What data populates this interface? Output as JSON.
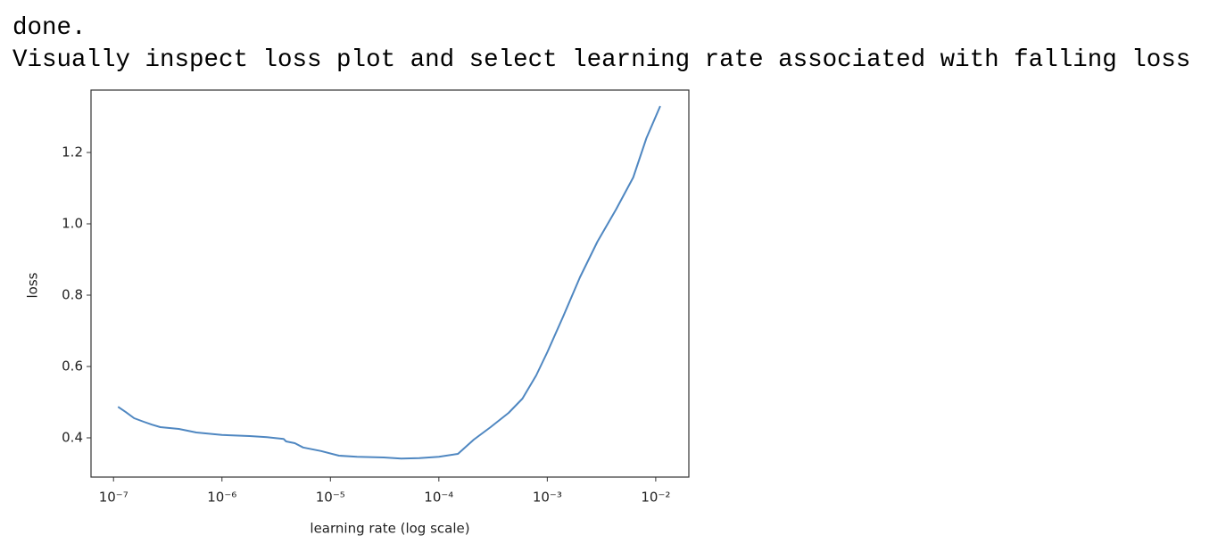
{
  "output_lines": [
    "done.",
    "Visually inspect loss plot and select learning rate associated with falling loss"
  ],
  "chart_data": {
    "type": "line",
    "xlabel": "learning rate (log scale)",
    "ylabel": "loss",
    "xscale": "log",
    "color": "#4f87c1",
    "grid": false,
    "x": [
      1.1e-07,
      1.3e-07,
      1.55e-07,
      1.9e-07,
      2.26e-07,
      2.7e-07,
      4e-07,
      5.8e-07,
      1e-06,
      1.8e-06,
      2.6e-06,
      3.7e-06,
      3.9e-06,
      4.7e-06,
      5.6e-06,
      8.2e-06,
      1.2e-05,
      1.76e-05,
      3.1e-05,
      4.5e-05,
      6.6e-05,
      0.0001,
      0.00015,
      0.00021,
      0.0003,
      0.00044,
      0.00059,
      0.00079,
      0.001,
      0.0014,
      0.002,
      0.0029,
      0.0043,
      0.0062,
      0.0082,
      0.011
    ],
    "values": [
      0.487,
      0.472,
      0.455,
      0.445,
      0.437,
      0.43,
      0.425,
      0.415,
      0.408,
      0.405,
      0.402,
      0.397,
      0.39,
      0.385,
      0.373,
      0.363,
      0.35,
      0.347,
      0.345,
      0.342,
      0.343,
      0.347,
      0.355,
      0.395,
      0.43,
      0.47,
      0.51,
      0.575,
      0.64,
      0.74,
      0.85,
      0.95,
      1.04,
      1.13,
      1.24,
      1.33
    ],
    "xlim": [
      6.2e-08,
      0.0202
    ],
    "ylim": [
      0.29,
      1.375
    ],
    "xticks": [
      {
        "value": 1e-07,
        "label": "10⁻⁷"
      },
      {
        "value": 1e-06,
        "label": "10⁻⁶"
      },
      {
        "value": 1e-05,
        "label": "10⁻⁵"
      },
      {
        "value": 0.0001,
        "label": "10⁻⁴"
      },
      {
        "value": 0.001,
        "label": "10⁻³"
      },
      {
        "value": 0.01,
        "label": "10⁻²"
      }
    ],
    "yticks": [
      0.4,
      0.6,
      0.8,
      {
        "value": 1,
        "label": "1.0"
      },
      1.2
    ]
  }
}
